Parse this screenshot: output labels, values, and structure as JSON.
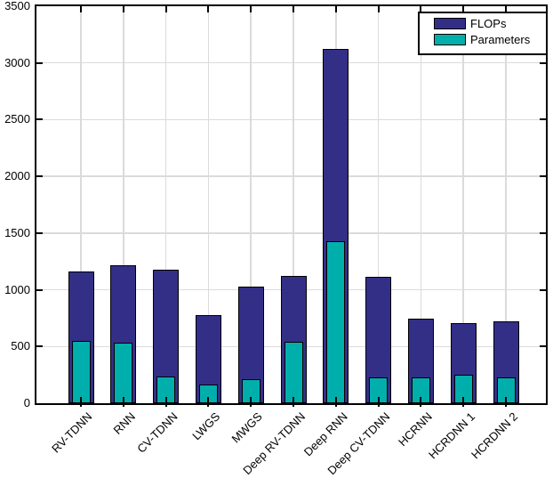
{
  "chart_data": {
    "type": "bar",
    "variant": "overlaid",
    "title": "",
    "xlabel": "",
    "ylabel": "",
    "categories": [
      "RV-TDNN",
      "RNN",
      "CV-TDNN",
      "LWGS",
      "MWGS",
      "Deep RV-TDNN",
      "Deep RNN",
      "Deep CV-TDNN",
      "HCRNN",
      "HCRDNN 1",
      "HCRDNN 2"
    ],
    "series": [
      {
        "name": "FLOPs",
        "color": "#332F87",
        "values": [
          1165,
          1220,
          1180,
          780,
          1030,
          1125,
          3120,
          1115,
          745,
          705,
          725
        ]
      },
      {
        "name": "Parameters",
        "color": "#00AFAC",
        "values": [
          550,
          530,
          235,
          165,
          210,
          540,
          1425,
          225,
          230,
          250,
          225
        ]
      }
    ],
    "ylim": [
      0,
      3500
    ],
    "yticks": [
      0,
      500,
      1000,
      1500,
      2000,
      2500,
      3000,
      3500
    ],
    "grid": true,
    "grid_color": "#DBDBDB",
    "axis_color": "#000000",
    "bar_edge_color": "#000000",
    "background": "#ffffff",
    "legend_position": "top-right",
    "x_tick_label_rotation_deg": 45
  }
}
